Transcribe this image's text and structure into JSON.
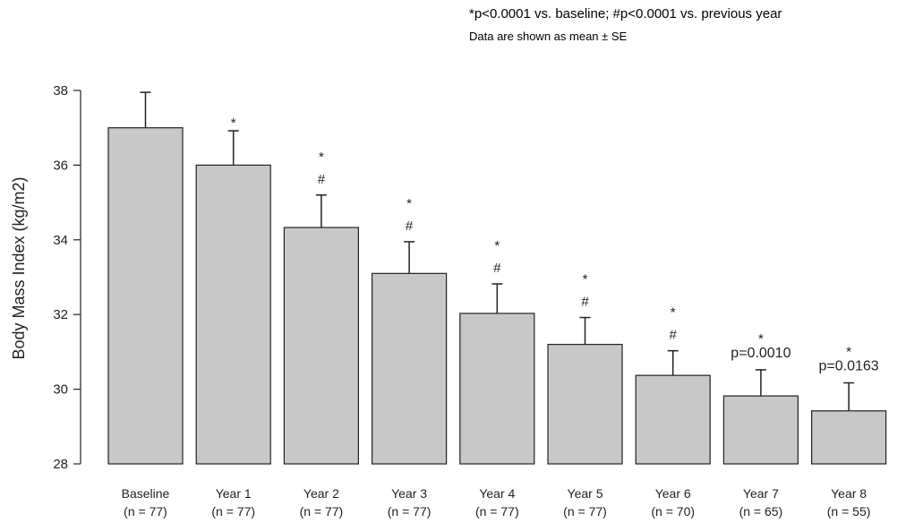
{
  "notes": {
    "significance": "*p<0.0001 vs. baseline; #p<0.0001 vs. previous year",
    "summary": "Data are shown as mean ± SE"
  },
  "chart_data": {
    "type": "bar",
    "ylabel": "Body Mass Index (kg/m2)",
    "ylim": [
      28,
      38
    ],
    "yticks": [
      28,
      30,
      32,
      34,
      36,
      38
    ],
    "categories": [
      "Baseline",
      "Year  1",
      "Year  2",
      "Year  3",
      "Year  4",
      "Year  5",
      "Year  6",
      "Year  7",
      "Year  8"
    ],
    "n_labels": [
      "(n = 77)",
      "(n = 77)",
      "(n = 77)",
      "(n = 77)",
      "(n = 77)",
      "(n = 77)",
      "(n = 70)",
      "(n = 65)",
      "(n = 55)"
    ],
    "values": [
      37.0,
      36.0,
      34.33,
      33.1,
      32.03,
      31.2,
      30.37,
      29.82,
      29.42
    ],
    "error_upper": [
      37.95,
      36.92,
      35.2,
      33.95,
      32.82,
      31.92,
      31.03,
      30.52,
      30.17
    ],
    "star_annotations": [
      "",
      "*",
      "*",
      "*",
      "*",
      "*",
      "*",
      "*",
      "*"
    ],
    "hash_annotations": [
      "",
      "",
      "#",
      "#",
      "#",
      "#",
      "#",
      "",
      ""
    ],
    "p_annotations": [
      "",
      "",
      "",
      "",
      "",
      "",
      "",
      "p=0.0010",
      "p=0.0163"
    ],
    "grid": false
  }
}
